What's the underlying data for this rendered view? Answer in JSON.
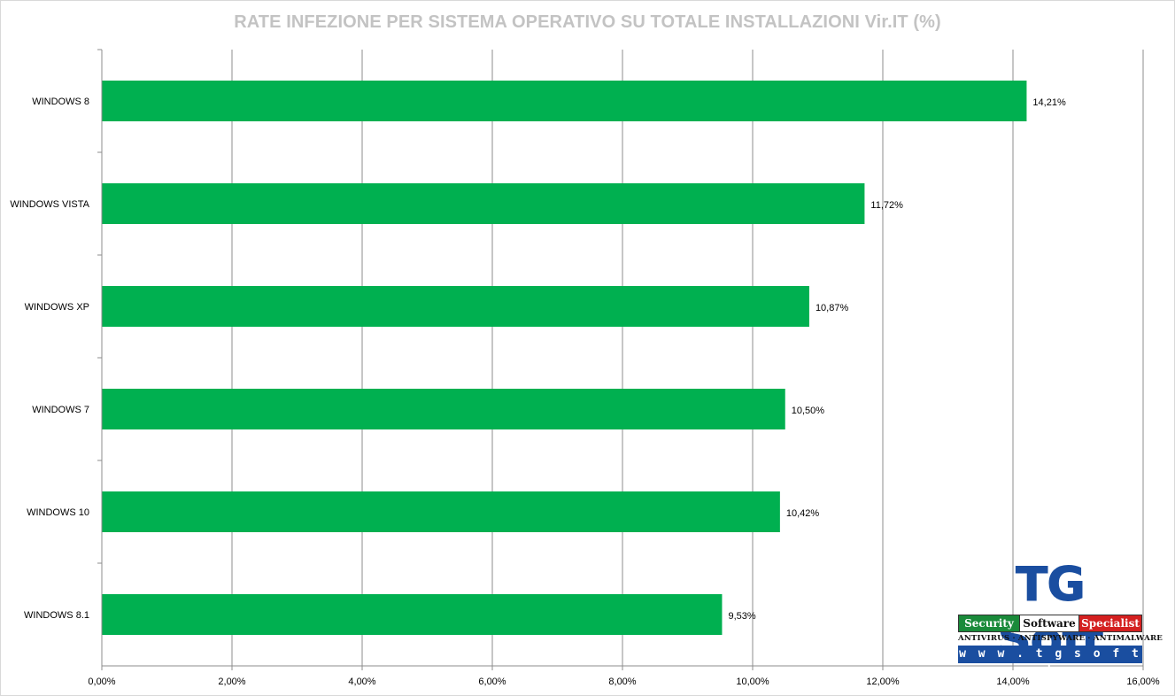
{
  "chart_data": {
    "type": "bar",
    "orientation": "horizontal",
    "title": "RATE INFEZIONE PER SISTEMA OPERATIVO SU TOTALE INSTALLAZIONI Vir.IT (%)",
    "categories": [
      "WINDOWS 8",
      "WINDOWS VISTA",
      "WINDOWS XP",
      "WINDOWS 7",
      "WINDOWS 10",
      "WINDOWS 8.1"
    ],
    "values": [
      14.21,
      11.72,
      10.87,
      10.5,
      10.42,
      9.53
    ],
    "data_labels": [
      "14,21%",
      "11,72%",
      "10,87%",
      "10,50%",
      "10,42%",
      "9,53%"
    ],
    "xlim": [
      0,
      16
    ],
    "x_ticks": [
      0,
      2,
      4,
      6,
      8,
      10,
      12,
      14,
      16
    ],
    "x_tick_labels": [
      "0,00%",
      "2,00%",
      "4,00%",
      "6,00%",
      "8,00%",
      "10,00%",
      "12,00%",
      "14,00%",
      "16,00%"
    ],
    "xlabel": "",
    "ylabel": "",
    "grid": "vertical",
    "legend": "none",
    "bar_color": "#00b050"
  },
  "logo": {
    "title": "TG Soft",
    "ribbon": [
      "Security",
      "Software",
      "Specialist"
    ],
    "tagline": "ANTIVIRUS · ANTISPYWARE · ANTIMALWARE",
    "url": "w w w . t g s o f t . i t"
  }
}
